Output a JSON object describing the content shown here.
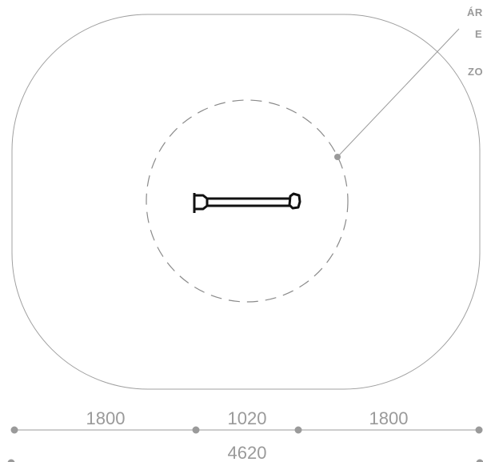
{
  "callout": {
    "lines": [
      "ÁRI",
      "E",
      "ZO"
    ]
  },
  "dimensions": {
    "segments": [
      "1800",
      "1020",
      "1800"
    ],
    "total": "4620"
  },
  "colors": {
    "line": "#9a9a9a",
    "outline": "#a0a0a0",
    "equipment": "#111111"
  }
}
